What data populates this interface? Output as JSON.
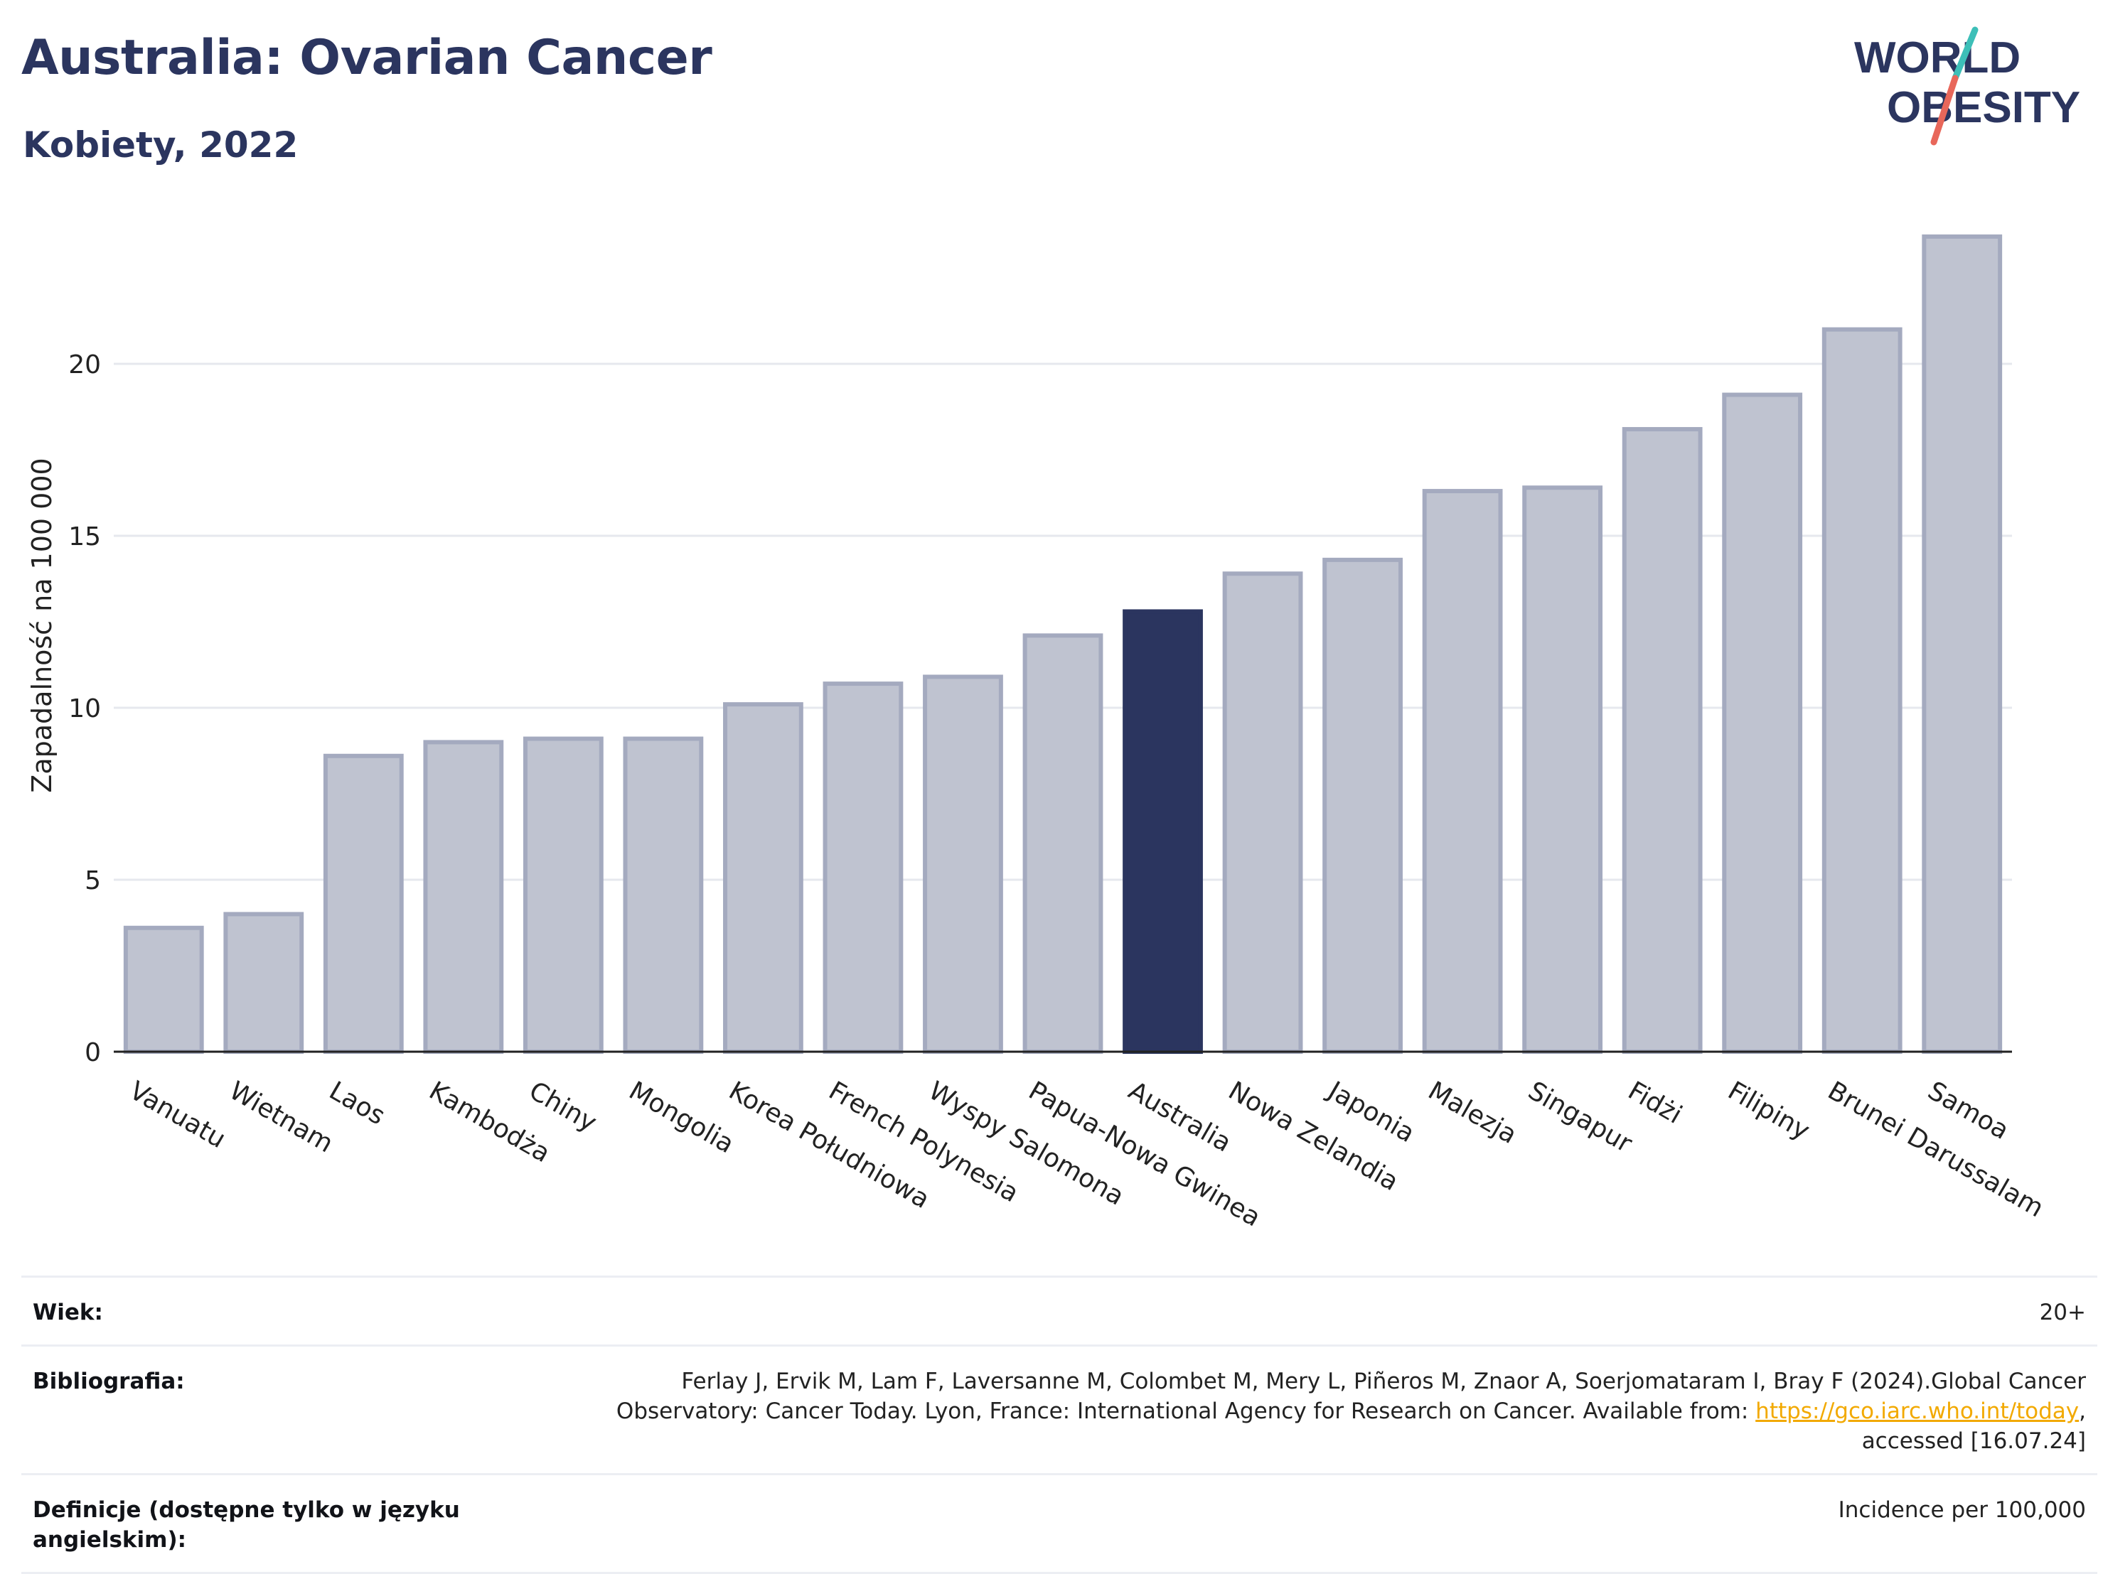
{
  "header": {
    "title": "Australia: Ovarian Cancer",
    "subtitle": "Kobiety, 2022"
  },
  "logo": {
    "line1": "WORLD",
    "line2": "OBESITY",
    "colors": {
      "text": "#2b355f",
      "slash_teal": "#3dbfb8",
      "slash_coral": "#e8675a"
    }
  },
  "chart_data": {
    "type": "bar",
    "categories": [
      "Vanuatu",
      "Wietnam",
      "Laos",
      "Kambodża",
      "Chiny",
      "Mongolia",
      "Korea Południowa",
      "French Polynesia",
      "Wyspy Salomona",
      "Papua-Nowa Gwinea",
      "Australia",
      "Nowa Zelandia",
      "Japonia",
      "Malezja",
      "Singapur",
      "Fidżi",
      "Filipiny",
      "Brunei Darussalam",
      "Samoa"
    ],
    "values": [
      3.6,
      4.0,
      8.6,
      9.0,
      9.1,
      9.1,
      10.1,
      10.7,
      10.9,
      12.1,
      12.8,
      13.9,
      14.3,
      16.3,
      16.4,
      18.1,
      19.1,
      21.0,
      23.7
    ],
    "highlight": "Australia",
    "xlabel": "",
    "ylabel": "Zapadalność na 100 000",
    "ylim": [
      0,
      25
    ],
    "yticks": [
      0,
      5,
      10,
      15,
      20
    ],
    "grid": true,
    "colors": {
      "bar": "#bfc3d0",
      "bar_border": "#a4aabf",
      "highlight": "#2b355f",
      "grid": "#e6e8ee",
      "axis": "#222222"
    }
  },
  "meta": {
    "age_label": "Wiek:",
    "age_value": "20+",
    "bib_label": "Bibliografia:",
    "bib_text_1": "Ferlay J, Ervik M, Lam F, Laversanne M, Colombet M, Mery L, Piñeros M, Znaor A, Soerjomataram I, Bray F (2024).Global Cancer",
    "bib_text_2": "Observatory: Cancer Today. Lyon, France: International Agency for Research on Cancer. Available from: ",
    "bib_link": "https://gco.iarc.who.int/today",
    "bib_text_3": ",",
    "bib_text_4": "accessed [16.07.24]",
    "def_label": "Definicje (dostępne tylko w języku angielskim):",
    "def_value": "Incidence per 100,000"
  }
}
